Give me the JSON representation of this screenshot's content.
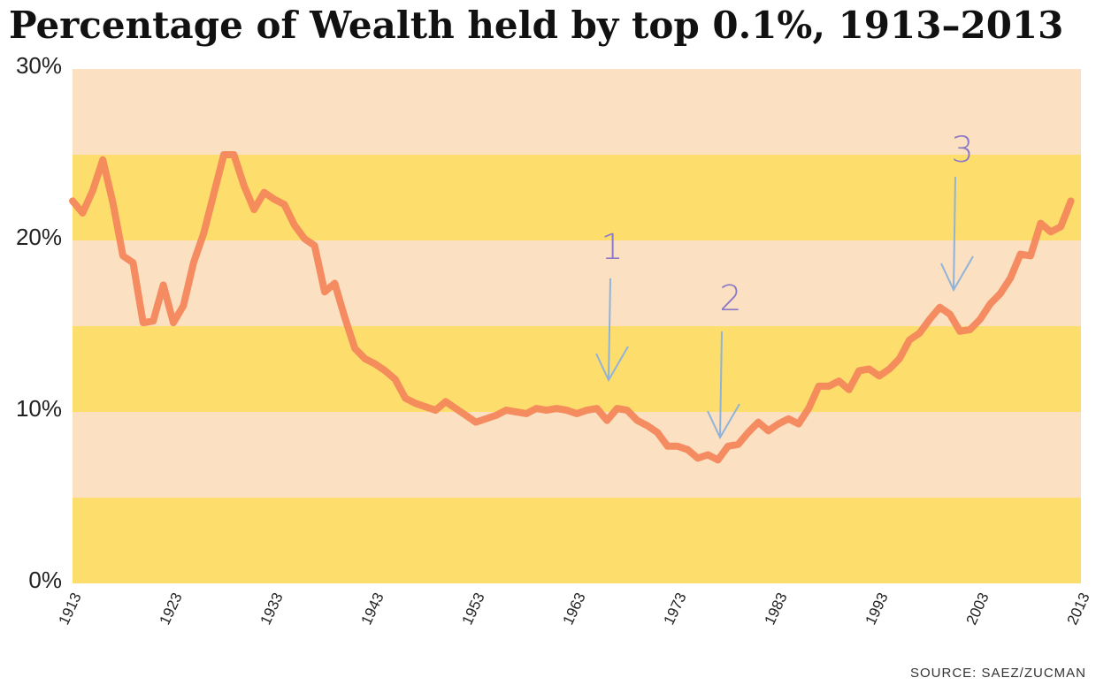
{
  "chart_data": {
    "type": "line",
    "title": "Percentage of Wealth held by top 0.1%, 1913–2013",
    "source": "SOURCE: SAEZ/ZUCMAN",
    "annotations": [
      "1",
      "2",
      "3"
    ],
    "x": [
      1913,
      1914,
      1915,
      1916,
      1917,
      1918,
      1919,
      1920,
      1921,
      1922,
      1923,
      1924,
      1925,
      1926,
      1927,
      1928,
      1929,
      1930,
      1931,
      1932,
      1933,
      1934,
      1935,
      1936,
      1937,
      1938,
      1939,
      1940,
      1941,
      1942,
      1943,
      1944,
      1945,
      1946,
      1947,
      1948,
      1949,
      1950,
      1951,
      1952,
      1953,
      1954,
      1955,
      1956,
      1957,
      1958,
      1959,
      1960,
      1961,
      1962,
      1963,
      1964,
      1965,
      1966,
      1967,
      1968,
      1969,
      1970,
      1971,
      1972,
      1973,
      1974,
      1975,
      1976,
      1977,
      1978,
      1979,
      1980,
      1981,
      1982,
      1983,
      1984,
      1985,
      1986,
      1987,
      1988,
      1989,
      1990,
      1991,
      1992,
      1993,
      1994,
      1995,
      1996,
      1997,
      1998,
      1999,
      2000,
      2001,
      2002,
      2003,
      2004,
      2005,
      2006,
      2007,
      2008,
      2009,
      2010,
      2011,
      2012
    ],
    "series": [
      {
        "color": "#f4875c",
        "values": [
          22.3,
          21.6,
          22.9,
          24.7,
          22.2,
          19.1,
          18.7,
          15.2,
          15.3,
          17.4,
          15.2,
          16.2,
          18.7,
          20.4,
          22.7,
          25.0,
          25.0,
          23.2,
          21.8,
          22.8,
          22.4,
          22.1,
          20.9,
          20.1,
          19.7,
          17.0,
          17.5,
          15.5,
          13.7,
          13.1,
          12.8,
          12.4,
          11.9,
          10.8,
          10.5,
          10.3,
          10.1,
          10.6,
          10.2,
          9.8,
          9.4,
          9.6,
          9.8,
          10.1,
          10.0,
          9.9,
          10.2,
          10.1,
          10.2,
          10.1,
          9.9,
          10.1,
          10.2,
          9.5,
          10.2,
          10.1,
          9.5,
          9.2,
          8.8,
          8.0,
          8.0,
          7.8,
          7.3,
          7.5,
          7.2,
          8.0,
          8.1,
          8.8,
          9.4,
          8.9,
          9.3,
          9.6,
          9.3,
          10.2,
          11.5,
          11.5,
          11.8,
          11.3,
          12.4,
          12.5,
          12.1,
          12.5,
          13.1,
          14.2,
          14.6,
          15.4,
          16.1,
          15.7,
          14.7,
          14.8,
          15.4,
          16.3,
          16.9,
          17.8,
          19.2,
          19.1,
          21.0,
          20.5,
          20.8,
          22.3
        ]
      }
    ],
    "xlim": [
      1913,
      2013
    ],
    "xticks": [
      1913,
      1923,
      1933,
      1943,
      1953,
      1963,
      1973,
      1983,
      1993,
      2003,
      2013
    ],
    "ylim": [
      0,
      30
    ],
    "yticks": [
      {
        "value": 0,
        "label": "0%"
      },
      {
        "value": 10,
        "label": "10%"
      },
      {
        "value": 20,
        "label": "20%"
      },
      {
        "value": 30,
        "label": "30%"
      }
    ],
    "band_colors": [
      "#fddd6b",
      "#fbe0c2"
    ]
  }
}
